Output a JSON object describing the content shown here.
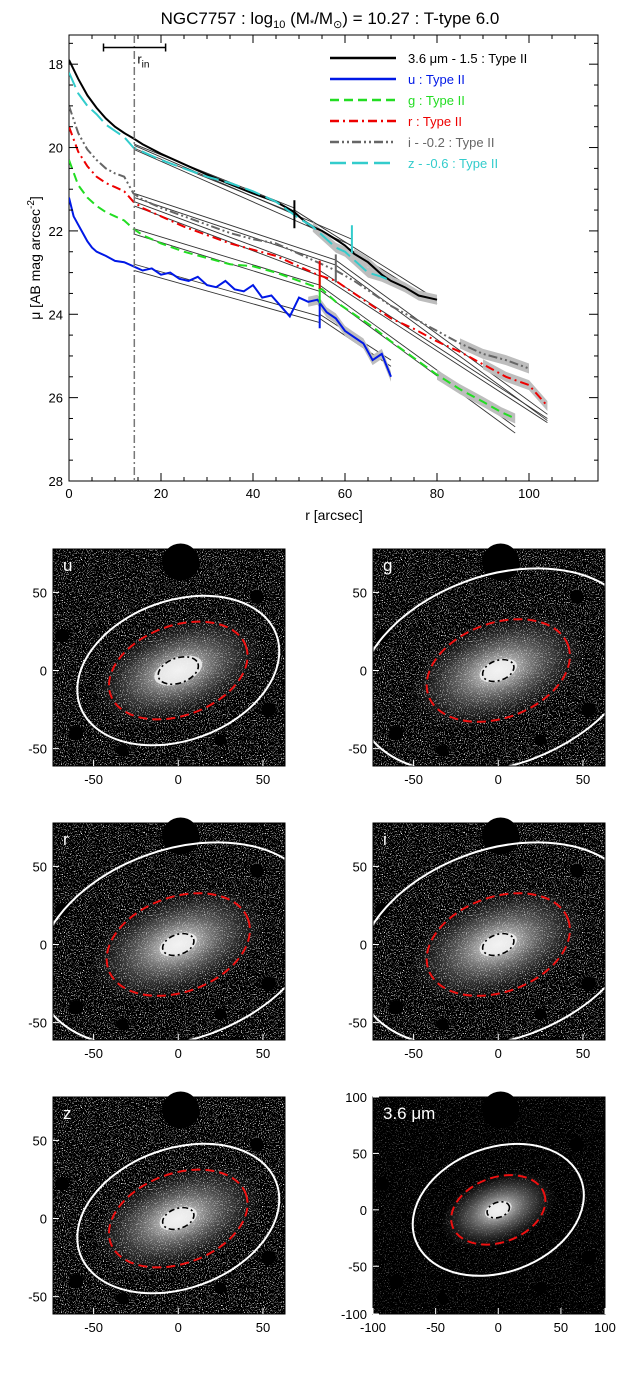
{
  "chart_data": [
    {
      "type": "line",
      "title": "NGC7757 : log",
      "title_sub": "10",
      "title_mid": " (M",
      "title_star": "*",
      "title_slash": "/M",
      "title_sun": "⊙",
      "title_end": ") = 10.27 : T-type 6.0",
      "xlabel": "r [arcsec]",
      "ylabel": "μ [AB mag arcsec",
      "ylabel_sup": "-2",
      "ylabel_end": "]",
      "xlim": [
        0,
        115
      ],
      "ylim": [
        28,
        17.3
      ],
      "y_inverted": true,
      "xticks": [
        0,
        20,
        40,
        60,
        80,
        100
      ],
      "yticks": [
        18,
        20,
        22,
        24,
        26,
        28
      ],
      "grid": false,
      "legend_position": "top-right",
      "annotations": {
        "r_in_label": "r",
        "r_in_sub": "in",
        "r_in_x": 14.2,
        "r_in_errorbar": [
          7.5,
          21
        ],
        "r_in_errorbar_y": 17.6
      },
      "series": [
        {
          "name": "3.6 μm - 1.5 : Type II",
          "color": "#000000",
          "dash": "solid",
          "x": [
            0,
            2,
            4,
            6,
            8,
            10,
            12,
            14,
            16,
            20,
            25,
            30,
            35,
            40,
            45,
            49,
            52,
            55,
            58,
            60,
            62,
            65,
            68,
            70,
            73,
            76,
            80
          ],
          "y": [
            17.9,
            18.35,
            18.75,
            19.05,
            19.3,
            19.5,
            19.65,
            19.78,
            19.92,
            20.15,
            20.4,
            20.65,
            20.88,
            21.1,
            21.3,
            21.55,
            21.85,
            22.0,
            22.2,
            22.35,
            22.55,
            22.75,
            23.05,
            23.2,
            23.35,
            23.55,
            23.65
          ],
          "fits": [
            {
              "x": [
                14.2,
                49
              ],
              "y": [
                19.92,
                21.45
              ]
            },
            {
              "x": [
                14.2,
                49
              ],
              "y": [
                20.02,
                21.58
              ]
            },
            {
              "x": [
                49,
                80
              ],
              "y": [
                21.5,
                23.65
              ]
            },
            {
              "x": [
                49,
                80
              ],
              "y": [
                21.6,
                23.75
              ]
            }
          ],
          "break_r": 49,
          "break_mu": 21.6
        },
        {
          "name": "u : Type II",
          "color": "#0018e6",
          "dash": "solid",
          "x": [
            0,
            1,
            2,
            3,
            4,
            5,
            6,
            8,
            10,
            12,
            14,
            16,
            18,
            20,
            22,
            24,
            26,
            28,
            30,
            32,
            34,
            36,
            38,
            40,
            42,
            44,
            46,
            48,
            50,
            52,
            54,
            56,
            58,
            60,
            62,
            64,
            66,
            68,
            70
          ],
          "y": [
            21.2,
            21.65,
            21.85,
            22.05,
            22.25,
            22.4,
            22.5,
            22.6,
            22.72,
            22.75,
            22.85,
            22.95,
            22.9,
            23.05,
            23.0,
            23.15,
            23.2,
            23.1,
            23.3,
            23.35,
            23.2,
            23.4,
            23.45,
            23.3,
            23.6,
            23.55,
            23.8,
            24.05,
            23.6,
            23.7,
            23.65,
            23.95,
            24.1,
            24.4,
            24.55,
            24.7,
            25.1,
            24.95,
            25.5
          ],
          "fits": [
            {
              "x": [
                14.2,
                54.5
              ],
              "y": [
                22.8,
                24.05
              ]
            },
            {
              "x": [
                14.2,
                54.5
              ],
              "y": [
                22.95,
                24.2
              ]
            },
            {
              "x": [
                54.5,
                70
              ],
              "y": [
                24.0,
                25.1
              ]
            },
            {
              "x": [
                54.5,
                70
              ],
              "y": [
                24.1,
                25.25
              ]
            }
          ],
          "break_r": 54.5,
          "break_mu": 24.0
        },
        {
          "name": "g : Type II",
          "color": "#22dd22",
          "dash": "dashed",
          "x": [
            0,
            2,
            4,
            6,
            8,
            10,
            12,
            14,
            16,
            20,
            25,
            30,
            35,
            40,
            45,
            50,
            55,
            58,
            62,
            66,
            70,
            75,
            80,
            85,
            90,
            94,
            97
          ],
          "y": [
            20.3,
            20.9,
            21.2,
            21.4,
            21.55,
            21.65,
            21.75,
            21.95,
            22.1,
            22.3,
            22.5,
            22.65,
            22.8,
            22.85,
            23.0,
            23.2,
            23.4,
            23.7,
            24.0,
            24.3,
            24.65,
            25.05,
            25.45,
            25.8,
            26.1,
            26.35,
            26.5
          ],
          "fits": [
            {
              "x": [
                14.2,
                54.5
              ],
              "y": [
                21.95,
                23.3
              ]
            },
            {
              "x": [
                14.2,
                54.5
              ],
              "y": [
                22.08,
                23.45
              ]
            },
            {
              "x": [
                54.5,
                97
              ],
              "y": [
                23.3,
                26.7
              ]
            },
            {
              "x": [
                54.5,
                97
              ],
              "y": [
                23.42,
                26.85
              ]
            }
          ],
          "break_r": 54.5,
          "break_mu": 23.4
        },
        {
          "name": "r : Type II",
          "color": "#ee0000",
          "dash": "dash-dot",
          "x": [
            0,
            2,
            4,
            6,
            8,
            10,
            12,
            14,
            16,
            20,
            25,
            30,
            35,
            40,
            45,
            50,
            54,
            58,
            62,
            66,
            70,
            75,
            80,
            85,
            90,
            95,
            100,
            104
          ],
          "y": [
            19.5,
            20.1,
            20.45,
            20.7,
            20.85,
            20.95,
            21.05,
            21.3,
            21.45,
            21.65,
            21.9,
            22.1,
            22.3,
            22.45,
            22.6,
            22.85,
            23.05,
            23.2,
            23.5,
            23.8,
            24.1,
            24.35,
            24.65,
            24.9,
            25.2,
            25.5,
            25.7,
            26.2
          ],
          "fits": [
            {
              "x": [
                14.2,
                54.5
              ],
              "y": [
                21.3,
                22.95
              ]
            },
            {
              "x": [
                14.2,
                54.5
              ],
              "y": [
                21.4,
                23.08
              ]
            },
            {
              "x": [
                54.5,
                104
              ],
              "y": [
                22.95,
                26.5
              ]
            },
            {
              "x": [
                54.5,
                104
              ],
              "y": [
                23.05,
                26.6
              ]
            }
          ],
          "break_r": 54.5,
          "break_mu": 23.05
        },
        {
          "name": "i - -0.2 : Type II",
          "color": "#666666",
          "dash": "dash-dot-dot",
          "x": [
            0,
            2,
            4,
            6,
            8,
            10,
            12,
            14,
            16,
            20,
            25,
            30,
            35,
            40,
            45,
            50,
            54,
            58,
            62,
            66,
            70,
            75,
            80,
            85,
            90,
            95,
            100
          ],
          "y": [
            19.0,
            19.65,
            20.05,
            20.3,
            20.5,
            20.62,
            20.7,
            21.1,
            21.25,
            21.45,
            21.65,
            21.85,
            22.05,
            22.2,
            22.3,
            22.55,
            22.75,
            22.95,
            23.2,
            23.5,
            23.8,
            24.1,
            24.4,
            24.7,
            24.95,
            25.1,
            25.3
          ],
          "fits": [
            {
              "x": [
                14.2,
                58
              ],
              "y": [
                21.1,
                22.7
              ]
            },
            {
              "x": [
                14.2,
                58
              ],
              "y": [
                21.2,
                22.82
              ]
            },
            {
              "x": [
                58,
                104
              ],
              "y": [
                22.7,
                26.4
              ]
            },
            {
              "x": [
                58,
                104
              ],
              "y": [
                22.82,
                26.55
              ]
            }
          ],
          "break_r": 58,
          "break_mu": 22.9
        },
        {
          "name": "z - -0.6 : Type II",
          "color": "#33cccc",
          "dash": "long-dash",
          "x": [
            0,
            2,
            4,
            6,
            8,
            10,
            12,
            14,
            16,
            20,
            25,
            30,
            35,
            40,
            45,
            50,
            53,
            56,
            58,
            60,
            62,
            65,
            68,
            70
          ],
          "y": [
            18.2,
            18.7,
            19.0,
            19.2,
            19.45,
            19.6,
            19.75,
            20.0,
            20.1,
            20.3,
            20.5,
            20.7,
            20.85,
            21.05,
            21.3,
            21.7,
            21.9,
            22.2,
            22.4,
            22.5,
            22.7,
            23.0,
            23.1,
            23.2
          ],
          "fits": [
            {
              "x": [
                14.2,
                61.5
              ],
              "y": [
                19.95,
                22.2
              ]
            },
            {
              "x": [
                14.2,
                61.5
              ],
              "y": [
                20.05,
                22.35
              ]
            }
          ],
          "break_r": 61.5,
          "break_mu": 22.2
        }
      ]
    },
    {
      "type": "image-panels",
      "panels": [
        {
          "label": "u",
          "xticks": [
            "-50",
            "0",
            "50"
          ],
          "yticks": [
            "50",
            "0",
            "-50"
          ]
        },
        {
          "label": "g",
          "xticks": [
            "-50",
            "0",
            "50"
          ],
          "yticks": [
            "50",
            "0",
            "-50"
          ]
        },
        {
          "label": "r",
          "xticks": [
            "-50",
            "0",
            "50"
          ],
          "yticks": [
            "50",
            "0",
            "-50"
          ]
        },
        {
          "label": "i",
          "xticks": [
            "-50",
            "0",
            "50"
          ],
          "yticks": [
            "50",
            "0",
            "-50"
          ]
        },
        {
          "label": "z",
          "xticks": [
            "-50",
            "0",
            "50"
          ],
          "yticks": [
            "50",
            "0",
            "-50"
          ]
        },
        {
          "label": "3.6 μm",
          "xticks": [
            "-100",
            "-50",
            "0",
            "50",
            "100"
          ],
          "yticks": [
            "100",
            "50",
            "0",
            "-50",
            "-100"
          ]
        }
      ]
    }
  ]
}
